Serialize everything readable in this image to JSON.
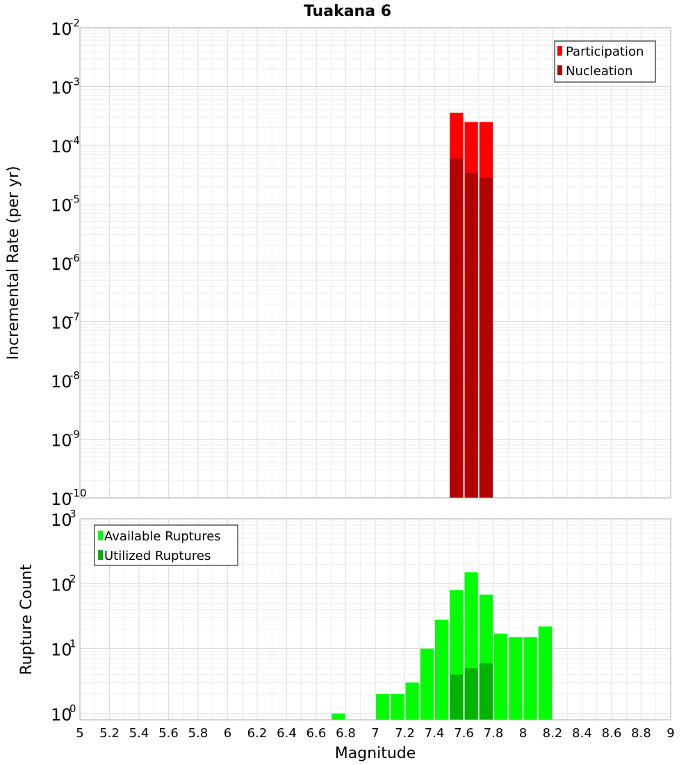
{
  "chart_data": [
    {
      "type": "bar",
      "title": "Tuakana 6",
      "xlabel": "",
      "ylabel": "Incremental Rate (per yr)",
      "yscale": "log",
      "ylim": [
        1e-10,
        0.01
      ],
      "xlim": [
        5,
        9
      ],
      "bin_width": 0.1,
      "grid": true,
      "legend_position": "top-right",
      "series": [
        {
          "name": "Participation",
          "color": "#ff0000",
          "x": [
            7.55,
            7.65,
            7.75
          ],
          "values": [
            0.00036,
            0.00025,
            0.00025
          ]
        },
        {
          "name": "Nucleation",
          "color": "#b30000",
          "x": [
            7.55,
            7.65,
            7.75
          ],
          "values": [
            6e-05,
            3.4e-05,
            2.8e-05
          ]
        }
      ],
      "yticks": [
        {
          "base": "10",
          "exp": "-2"
        },
        {
          "base": "10",
          "exp": "-3"
        },
        {
          "base": "10",
          "exp": "-4"
        },
        {
          "base": "10",
          "exp": "-5"
        },
        {
          "base": "10",
          "exp": "-6"
        },
        {
          "base": "10",
          "exp": "-7"
        },
        {
          "base": "10",
          "exp": "-8"
        },
        {
          "base": "10",
          "exp": "-9"
        },
        {
          "base": "10",
          "exp": "-10"
        }
      ]
    },
    {
      "type": "bar",
      "title": "",
      "xlabel": "Magnitude",
      "ylabel": "Rupture Count",
      "yscale": "log",
      "ylim": [
        0.8,
        1000
      ],
      "xlim": [
        5,
        9
      ],
      "bin_width": 0.1,
      "grid": true,
      "legend_position": "top-left",
      "series": [
        {
          "name": "Available Ruptures",
          "color": "#00ff00",
          "x": [
            6.75,
            7.05,
            7.15,
            7.25,
            7.35,
            7.45,
            7.55,
            7.65,
            7.75,
            7.85,
            7.95,
            8.05,
            8.15
          ],
          "values": [
            1,
            2,
            2,
            3,
            10,
            28,
            80,
            150,
            68,
            17,
            15,
            15,
            22
          ]
        },
        {
          "name": "Utilized Ruptures",
          "color": "#00b300",
          "x": [
            7.55,
            7.65,
            7.75
          ],
          "values": [
            4,
            5,
            6
          ]
        }
      ],
      "yticks": [
        {
          "base": "10",
          "exp": "3"
        },
        {
          "base": "10",
          "exp": "2"
        },
        {
          "base": "10",
          "exp": "1"
        },
        {
          "base": "10",
          "exp": "0"
        }
      ],
      "xticks": [
        "5",
        "5.2",
        "5.4",
        "5.6",
        "5.8",
        "6",
        "6.2",
        "6.4",
        "6.6",
        "6.8",
        "7",
        "7.2",
        "7.4",
        "7.6",
        "7.8",
        "8",
        "8.2",
        "8.4",
        "8.6",
        "8.8",
        "9"
      ]
    }
  ]
}
